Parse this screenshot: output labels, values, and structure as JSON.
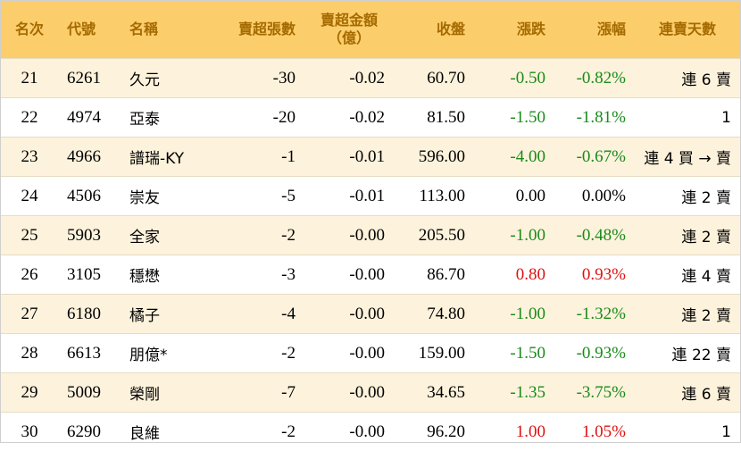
{
  "headers": {
    "rank": "名次",
    "code": "代號",
    "name": "名稱",
    "net_sell_lots": "賣超張數",
    "net_sell_amount_l1": "賣超金額",
    "net_sell_amount_l2": "（億）",
    "close": "收盤",
    "change": "漲跌",
    "change_pct": "漲幅",
    "consec_days": "連賣天數"
  },
  "rows": [
    {
      "rank": "21",
      "code": "6261",
      "name": "久元",
      "lots": "-30",
      "amount": "-0.02",
      "close": "60.70",
      "change": "-0.50",
      "pct": "-0.82%",
      "streak": "連 6 賣",
      "dir": "green"
    },
    {
      "rank": "22",
      "code": "4974",
      "name": "亞泰",
      "lots": "-20",
      "amount": "-0.02",
      "close": "81.50",
      "change": "-1.50",
      "pct": "-1.81%",
      "streak": "1",
      "dir": "green"
    },
    {
      "rank": "23",
      "code": "4966",
      "name": "譜瑞-KY",
      "lots": "-1",
      "amount": "-0.01",
      "close": "596.00",
      "change": "-4.00",
      "pct": "-0.67%",
      "streak": "連 4 買 → 賣",
      "dir": "green"
    },
    {
      "rank": "24",
      "code": "4506",
      "name": "崇友",
      "lots": "-5",
      "amount": "-0.01",
      "close": "113.00",
      "change": "0.00",
      "pct": "0.00%",
      "streak": "連 2 賣",
      "dir": "black"
    },
    {
      "rank": "25",
      "code": "5903",
      "name": "全家",
      "lots": "-2",
      "amount": "-0.00",
      "close": "205.50",
      "change": "-1.00",
      "pct": "-0.48%",
      "streak": "連 2 賣",
      "dir": "green"
    },
    {
      "rank": "26",
      "code": "3105",
      "name": "穩懋",
      "lots": "-3",
      "amount": "-0.00",
      "close": "86.70",
      "change": "0.80",
      "pct": "0.93%",
      "streak": "連 4 賣",
      "dir": "red"
    },
    {
      "rank": "27",
      "code": "6180",
      "name": "橘子",
      "lots": "-4",
      "amount": "-0.00",
      "close": "74.80",
      "change": "-1.00",
      "pct": "-1.32%",
      "streak": "連 2 賣",
      "dir": "green"
    },
    {
      "rank": "28",
      "code": "6613",
      "name": "朋億*",
      "lots": "-2",
      "amount": "-0.00",
      "close": "159.00",
      "change": "-1.50",
      "pct": "-0.93%",
      "streak": "連 22 賣",
      "dir": "green"
    },
    {
      "rank": "29",
      "code": "5009",
      "name": "榮剛",
      "lots": "-7",
      "amount": "-0.00",
      "close": "34.65",
      "change": "-1.35",
      "pct": "-3.75%",
      "streak": "連 6 賣",
      "dir": "green"
    },
    {
      "rank": "30",
      "code": "6290",
      "name": "良維",
      "lots": "-2",
      "amount": "-0.00",
      "close": "96.20",
      "change": "1.00",
      "pct": "1.05%",
      "streak": "1",
      "dir": "red"
    }
  ],
  "colors": {
    "header_bg": "#fccd6b",
    "header_text": "#a56a00",
    "alt_row": "#fdf2dc",
    "up": "#e01010",
    "down": "#1a8a1a"
  }
}
